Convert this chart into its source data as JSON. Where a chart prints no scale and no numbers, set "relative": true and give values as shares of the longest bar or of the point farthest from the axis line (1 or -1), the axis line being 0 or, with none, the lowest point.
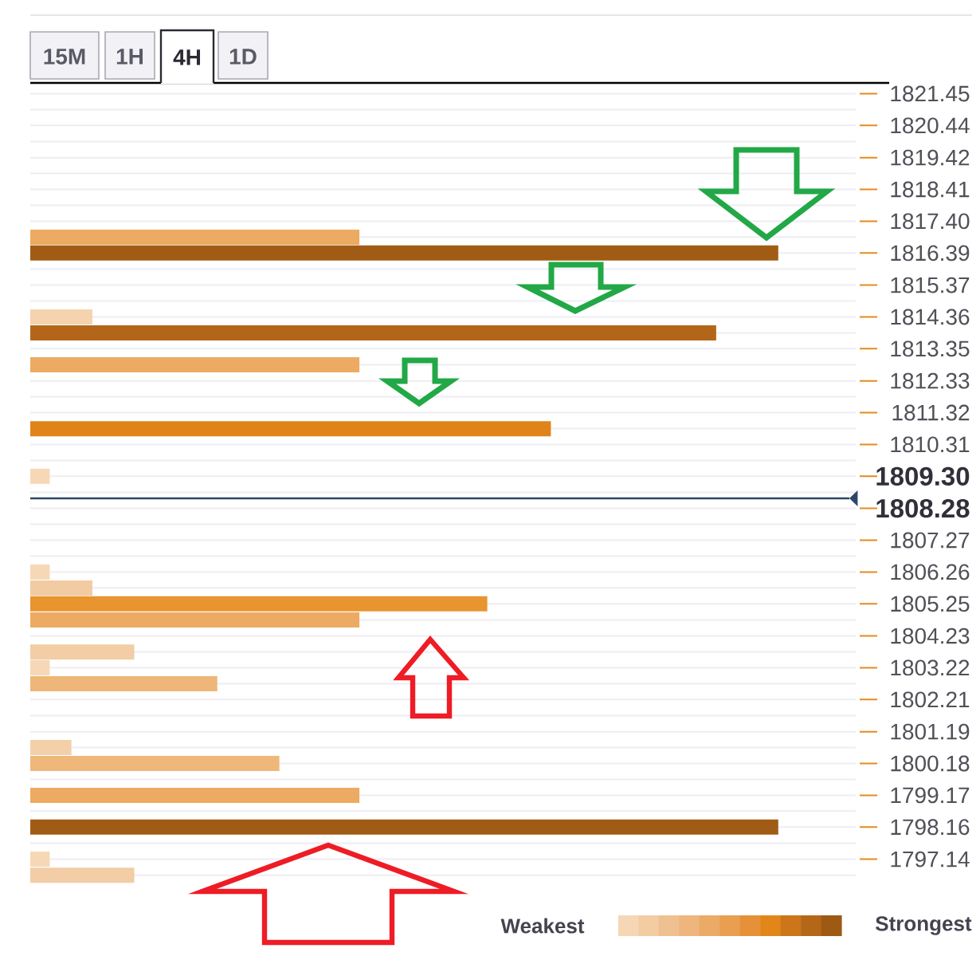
{
  "chart_data": {
    "type": "bar",
    "orientation": "horizontal",
    "relative": true,
    "x": [
      1816.89,
      1816.39,
      1814.36,
      1813.85,
      1812.84,
      1810.81,
      1809.3,
      1806.26,
      1805.75,
      1805.25,
      1804.74,
      1803.72,
      1803.22,
      1802.71,
      1800.69,
      1800.18,
      1799.17,
      1798.16,
      1797.14,
      1796.63
    ],
    "values": [
      0.44,
      1,
      0.083,
      0.917,
      0.44,
      0.696,
      0.026,
      0.026,
      0.083,
      0.611,
      0.44,
      0.139,
      0.026,
      0.25,
      0.055,
      0.333,
      0.44,
      1,
      0.026,
      0.139
    ],
    "colors": [
      "#edaa62",
      "#a05c14",
      "#f4d3ae",
      "#b3661a",
      "#edaa62",
      "#e0841a",
      "#f6d8b7",
      "#f6d8b7",
      "#f2cba2",
      "#e8942f",
      "#edaa62",
      "#f2cda5",
      "#f6d8b7",
      "#eeb678",
      "#f3d0aa",
      "#efb77a",
      "#edaa62",
      "#a05c14",
      "#f6d8b7",
      "#f2cda5"
    ],
    "ylim": [
      1796.38,
      1821.7
    ],
    "yticks": [
      1821.45,
      1820.44,
      1819.42,
      1818.41,
      {
        "value": 1817.4,
        "label": "1817.40"
      },
      1816.39,
      1815.37,
      1814.36,
      1813.35,
      1812.33,
      1811.32,
      1810.31,
      {
        "value": 1809.3,
        "label": "1809.30"
      },
      1808.28,
      1807.27,
      1806.26,
      1805.25,
      1804.23,
      1803.22,
      1802.21,
      1801.19,
      1800.18,
      1799.17,
      1798.16,
      1797.14
    ],
    "grid": "y",
    "ref_lines": [
      {
        "axis": "y",
        "value": 1808.6,
        "color": "#2c4766"
      }
    ],
    "annotations": [
      "15M",
      "1H",
      "4H",
      "1D",
      "Weakest",
      "Strongest"
    ]
  }
}
